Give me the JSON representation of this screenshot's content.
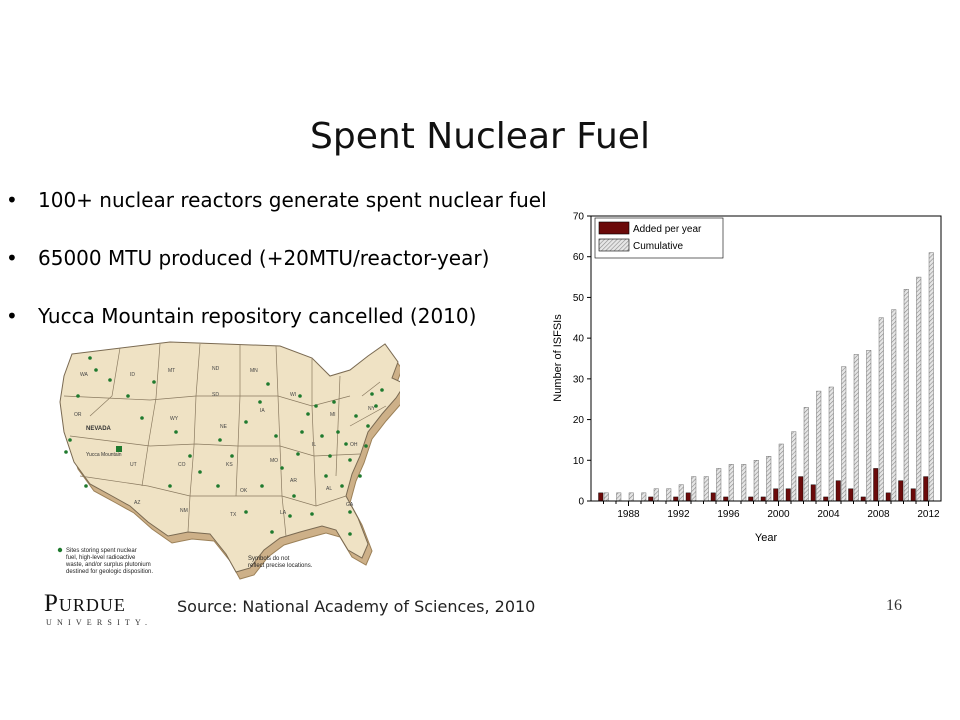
{
  "slide": {
    "title": "Spent Nuclear Fuel",
    "bullets": [
      "100+ nuclear reactors generate spent nuclear fuel",
      "65000 MTU produced (+20MTU/reactor-year)",
      "Yucca Mountain repository cancelled (2010)"
    ],
    "bullet_glyph": "•",
    "source": "Source: National Academy of Sciences, 2010",
    "page_number": "16",
    "logo_main": "Purdue",
    "logo_sub": "UNIVERSITY."
  },
  "map": {
    "legend_text_lines": [
      "Sites storing spent nuclear",
      "fuel, high-level radioactive",
      "waste, and/or surplus plutonium",
      "destined for geologic disposition."
    ],
    "note_lines": [
      "Symbols do not",
      "reflect precise locations."
    ],
    "state_labels": [
      "NEVADA",
      "Yucca Mountain"
    ],
    "colors": {
      "land": "#efe2c4",
      "edge": "#cdb088",
      "dot": "#1f7a2e",
      "line": "#3a3a3a"
    }
  },
  "chart_data": {
    "type": "bar",
    "xlabel": "Year",
    "ylabel": "Number of ISFSIs",
    "ylim": [
      0,
      70
    ],
    "yticks": [
      0,
      10,
      20,
      30,
      40,
      50,
      60,
      70
    ],
    "xtick_labels": [
      "1988",
      "1992",
      "1996",
      "2000",
      "2004",
      "2008",
      "2012"
    ],
    "categories": [
      1986,
      1987,
      1988,
      1989,
      1990,
      1991,
      1992,
      1993,
      1994,
      1995,
      1996,
      1997,
      1998,
      1999,
      2000,
      2001,
      2002,
      2003,
      2004,
      2005,
      2006,
      2007,
      2008,
      2009,
      2010,
      2011,
      2012
    ],
    "series": [
      {
        "name": "Added per year",
        "color": "#6b0a0a",
        "values": [
          2,
          0,
          0,
          0,
          1,
          0,
          1,
          2,
          0,
          2,
          1,
          0,
          1,
          1,
          3,
          3,
          6,
          4,
          1,
          5,
          3,
          1,
          8,
          2,
          5,
          3,
          6
        ]
      },
      {
        "name": "Cumulative",
        "color": "#bdbdbd",
        "values": [
          2,
          2,
          2,
          2,
          3,
          3,
          4,
          6,
          6,
          8,
          9,
          9,
          10,
          11,
          14,
          17,
          23,
          27,
          28,
          33,
          36,
          37,
          45,
          47,
          52,
          55,
          61
        ]
      }
    ],
    "legend_position": "top-left",
    "grid": false
  }
}
